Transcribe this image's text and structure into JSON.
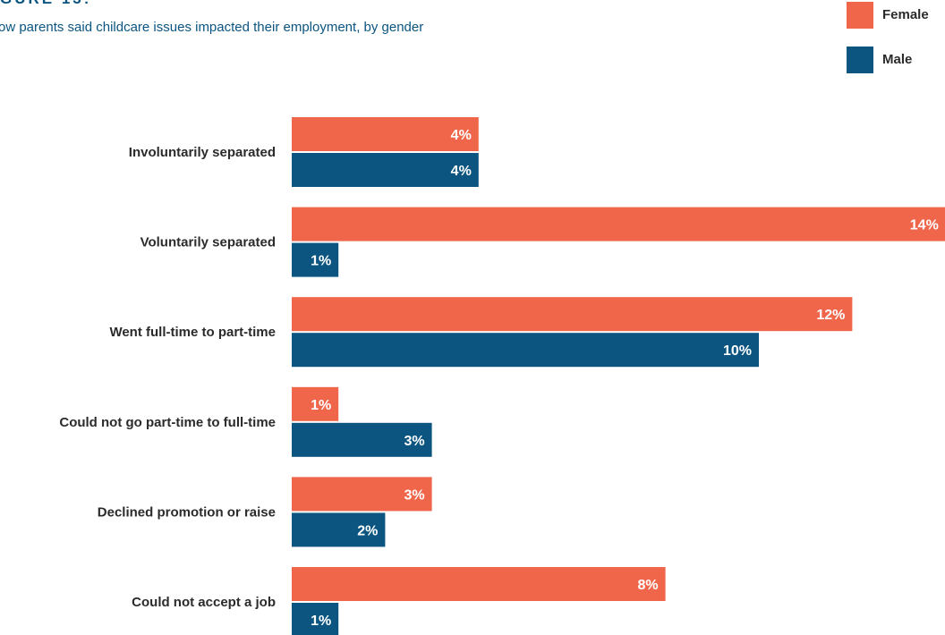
{
  "header": {
    "figure_label": "GURE 13:",
    "subtitle": "ow parents said childcare issues impacted their employment, by gender"
  },
  "legend": {
    "items": [
      {
        "label": "Female",
        "color": "#ef664b"
      },
      {
        "label": "Male",
        "color": "#0b5580"
      }
    ]
  },
  "chart_data": {
    "type": "bar",
    "orientation": "horizontal",
    "title": "",
    "xlabel": "",
    "ylabel": "",
    "categories": [
      "Involuntarily separated",
      "Voluntarily separated",
      "Went full-time to part-time",
      "Could not go part-time to full-time",
      "Declined promotion or raise",
      "Could not accept a job"
    ],
    "series": [
      {
        "name": "Female",
        "color": "#ef664b",
        "values": [
          4,
          14,
          12,
          1,
          3,
          8
        ]
      },
      {
        "name": "Male",
        "color": "#0b5580",
        "values": [
          4,
          1,
          10,
          3,
          2,
          1
        ]
      }
    ],
    "value_suffix": "%",
    "xlim": [
      0,
      14
    ],
    "grid": false,
    "legend_position": "top-right"
  }
}
